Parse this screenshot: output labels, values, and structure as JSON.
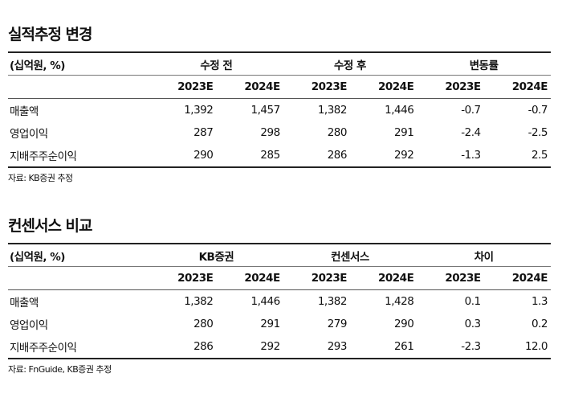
{
  "sections": [
    {
      "title": "실적추정 변경",
      "unit": "(십억원, %)",
      "groups": [
        "수정 전",
        "수정 후",
        "변동률"
      ],
      "years": [
        "2023E",
        "2024E",
        "2023E",
        "2024E",
        "2023E",
        "2024E"
      ],
      "rows": [
        {
          "label": "매출액",
          "values": [
            "1,392",
            "1,457",
            "1,382",
            "1,446",
            "-0.7",
            "-0.7"
          ]
        },
        {
          "label": "영업이익",
          "values": [
            "287",
            "298",
            "280",
            "291",
            "-2.4",
            "-2.5"
          ]
        },
        {
          "label": "지배주주순이익",
          "values": [
            "290",
            "285",
            "286",
            "292",
            "-1.3",
            "2.5"
          ]
        }
      ],
      "source": "자료: KB증권 추정"
    },
    {
      "title": "컨센서스 비교",
      "unit": "(십억원, %)",
      "groups": [
        "KB증권",
        "컨센서스",
        "차이"
      ],
      "years": [
        "2023E",
        "2024E",
        "2023E",
        "2024E",
        "2023E",
        "2024E"
      ],
      "rows": [
        {
          "label": "매출액",
          "values": [
            "1,382",
            "1,446",
            "1,382",
            "1,428",
            "0.1",
            "1.3"
          ]
        },
        {
          "label": "영업이익",
          "values": [
            "280",
            "291",
            "279",
            "290",
            "0.3",
            "0.2"
          ]
        },
        {
          "label": "지배주주순이익",
          "values": [
            "286",
            "292",
            "293",
            "261",
            "-2.3",
            "12.0"
          ]
        }
      ],
      "source": "자료: FnGuide, KB증권 추정"
    }
  ]
}
